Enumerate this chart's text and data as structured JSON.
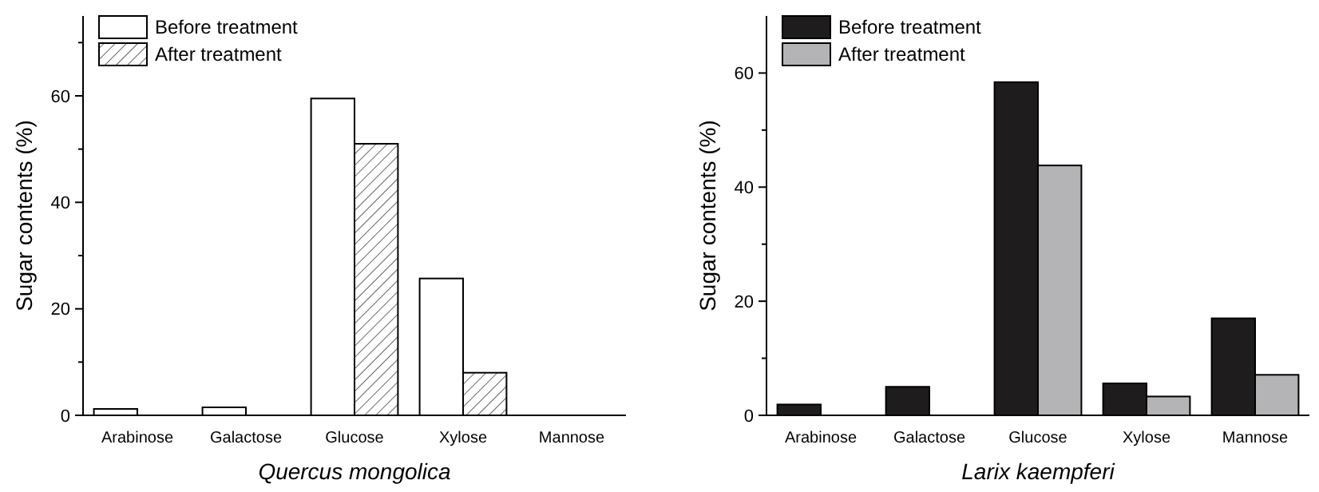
{
  "chart_data": [
    {
      "type": "bar",
      "xlabel": "Quercus mongolica",
      "ylabel": "Sugar contents (%)",
      "categories": [
        "Arabinose",
        "Galactose",
        "Glucose",
        "Xylose",
        "Mannose"
      ],
      "ylim": [
        0,
        75
      ],
      "yticks": [
        0,
        {
          "value": 10,
          "label": null
        },
        20,
        {
          "value": 30,
          "label": null
        },
        40,
        {
          "value": 50,
          "label": null
        },
        60,
        {
          "value": 70,
          "label": null
        }
      ],
      "legend": "top left",
      "series": [
        {
          "name": "Before treatment",
          "color": "#ffffff",
          "values": [
            1.2,
            1.5,
            59.5,
            25.7,
            0
          ]
        },
        {
          "name": "After treatment",
          "color": "#000000",
          "values": [
            0,
            0,
            51,
            8,
            0
          ]
        }
      ]
    },
    {
      "type": "bar",
      "xlabel": "Larix kaempferi",
      "ylabel": "Sugar contents (%)",
      "categories": [
        "Arabinose",
        "Galactose",
        "Glucose",
        "Xylose",
        "Mannose"
      ],
      "ylim": [
        0,
        70
      ],
      "yticks": [
        0,
        {
          "value": 10,
          "label": null
        },
        20,
        {
          "value": 30,
          "label": null
        },
        40,
        {
          "value": 50,
          "label": null
        },
        60
      ],
      "legend": "top left",
      "series": [
        {
          "name": "Before treatment",
          "color": "#1e1c1c",
          "values": [
            1.9,
            5,
            58.4,
            5.6,
            17
          ]
        },
        {
          "name": "After treatment",
          "color": "#b4b4b6",
          "values": [
            0,
            0,
            43.8,
            3.3,
            7.1
          ]
        }
      ]
    }
  ]
}
